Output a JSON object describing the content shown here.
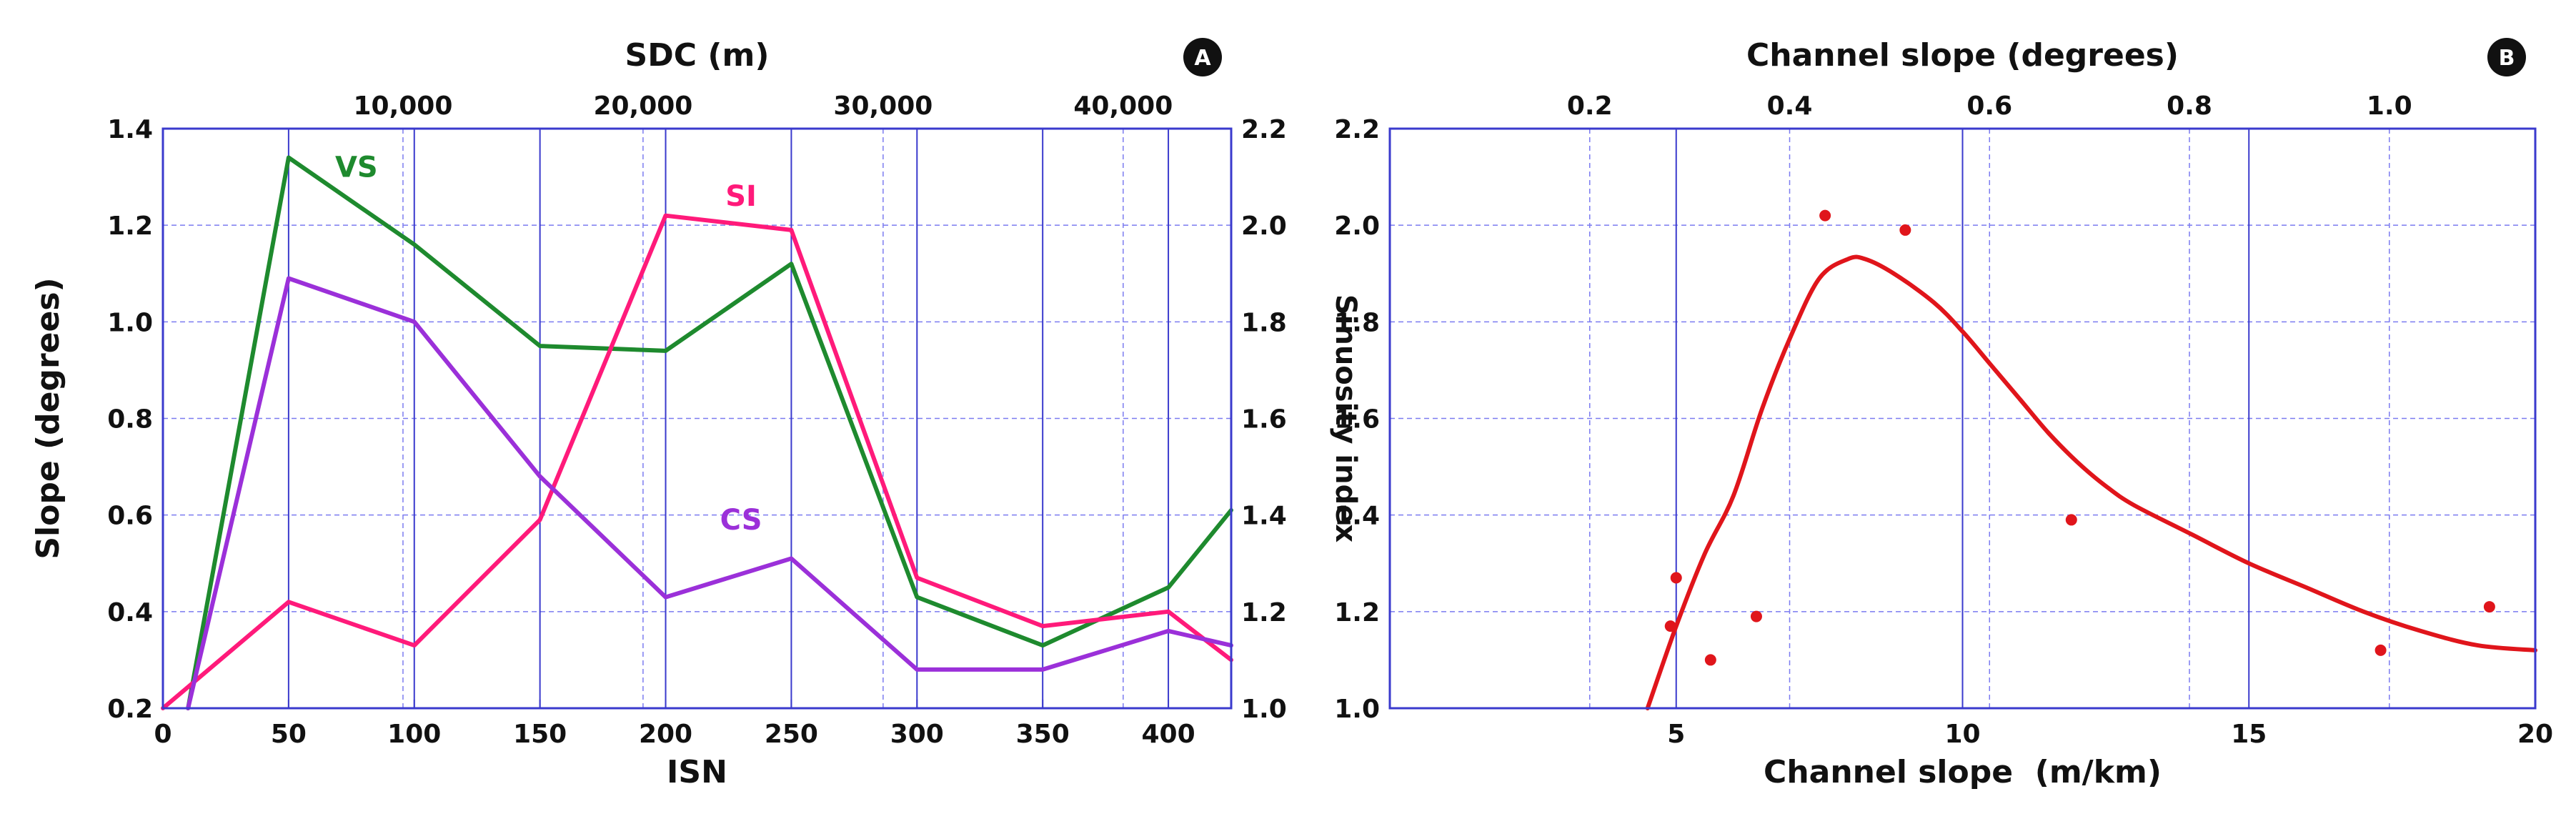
{
  "chart_data": [
    {
      "panel_label": "A",
      "type": "line",
      "xlabel": "ISN",
      "x_ticks": [
        "0",
        "50",
        "100",
        "150",
        "200",
        "250",
        "300",
        "350",
        "400"
      ],
      "xlim": [
        0,
        425
      ],
      "top_xlabel": "SDC (m)",
      "top_ticks": [
        {
          "value": 10000,
          "label": "10,000"
        },
        {
          "value": 20000,
          "label": "20,000"
        },
        {
          "value": 30000,
          "label": "30,000"
        },
        {
          "value": 40000,
          "label": "40,000"
        }
      ],
      "top_xlim": [
        0,
        44500
      ],
      "ylabel_left": "Slope (degrees)",
      "ylim_left": [
        0.2,
        1.4
      ],
      "y_ticks_left": [
        "0.2",
        "0.4",
        "0.6",
        "0.8",
        "1.0",
        "1.2",
        "1.4"
      ],
      "ylabel_right": "Sinuosity index",
      "ylim_right": [
        1.0,
        2.2
      ],
      "y_ticks_right": [
        "1.0",
        "1.2",
        "1.4",
        "1.6",
        "1.8",
        "2.0",
        "2.2"
      ],
      "grid": true,
      "series": [
        {
          "name": "VS",
          "axis": "left",
          "color": "#1e8a2e",
          "x": [
            10,
            50,
            100,
            150,
            200,
            250,
            300,
            350,
            400,
            425
          ],
          "y": [
            0.2,
            1.34,
            1.16,
            0.95,
            0.94,
            1.12,
            0.43,
            0.33,
            0.45,
            0.61
          ]
        },
        {
          "name": "SI",
          "axis": "right",
          "color": "#ff1a7a",
          "x": [
            0,
            50,
            100,
            150,
            200,
            250,
            300,
            350,
            400,
            425
          ],
          "y": [
            1.0,
            1.22,
            1.13,
            1.39,
            2.02,
            1.99,
            1.27,
            1.17,
            1.2,
            1.1
          ]
        },
        {
          "name": "CS",
          "axis": "left",
          "color": "#9b30d9",
          "x": [
            10,
            50,
            100,
            150,
            200,
            250,
            300,
            350,
            400,
            425
          ],
          "y": [
            0.2,
            1.09,
            1.0,
            0.68,
            0.43,
            0.51,
            0.28,
            0.28,
            0.36,
            0.33
          ]
        }
      ]
    },
    {
      "panel_label": "B",
      "type": "scatter",
      "xlabel": "Channel slope  (m/km)",
      "x_ticks": [
        "5",
        "10",
        "15",
        "20"
      ],
      "xlim": [
        0,
        20
      ],
      "top_xlabel": "Channel slope (degrees)",
      "top_ticks": [
        {
          "value": 0.2,
          "label": "0.2"
        },
        {
          "value": 0.4,
          "label": "0.4"
        },
        {
          "value": 0.6,
          "label": "0.6"
        },
        {
          "value": 0.8,
          "label": "0.8"
        },
        {
          "value": 1.0,
          "label": "1.0"
        }
      ],
      "top_xlim": [
        0,
        1.146
      ],
      "ylim": [
        1.0,
        2.2
      ],
      "y_ticks": [
        "1.0",
        "1.2",
        "1.4",
        "1.6",
        "1.8",
        "2.0",
        "2.2"
      ],
      "grid": true,
      "points": [
        {
          "x": 4.9,
          "y": 1.17
        },
        {
          "x": 5.0,
          "y": 1.27
        },
        {
          "x": 5.6,
          "y": 1.1
        },
        {
          "x": 6.4,
          "y": 1.19
        },
        {
          "x": 7.6,
          "y": 2.02
        },
        {
          "x": 9.0,
          "y": 1.99
        },
        {
          "x": 11.9,
          "y": 1.39
        },
        {
          "x": 17.3,
          "y": 1.12
        },
        {
          "x": 19.2,
          "y": 1.21
        }
      ],
      "point_color": "#e0151b",
      "fit_curve": {
        "color": "#e0151b",
        "x": [
          4.5,
          5.0,
          5.5,
          6.0,
          6.5,
          7.0,
          7.5,
          8.0,
          8.3,
          8.8,
          9.5,
          10.0,
          10.5,
          11.0,
          11.5,
          12.0,
          12.5,
          13.0,
          14.0,
          15.0,
          16.0,
          17.0,
          18.0,
          19.0,
          20.0
        ],
        "y": [
          1.0,
          1.17,
          1.32,
          1.44,
          1.62,
          1.77,
          1.89,
          1.93,
          1.93,
          1.9,
          1.84,
          1.78,
          1.71,
          1.64,
          1.57,
          1.51,
          1.46,
          1.42,
          1.36,
          1.3,
          1.25,
          1.2,
          1.16,
          1.13,
          1.12
        ]
      }
    }
  ]
}
